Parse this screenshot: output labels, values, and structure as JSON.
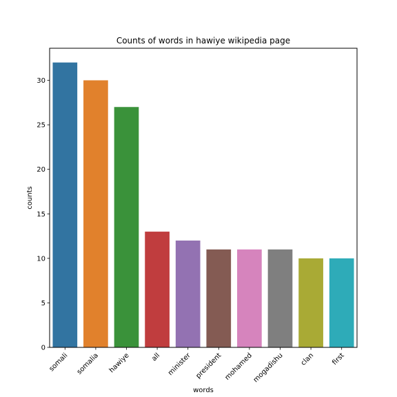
{
  "chart_data": {
    "type": "bar",
    "title": "Counts of words in hawiye wikipedia page",
    "xlabel": "words",
    "ylabel": "counts",
    "categories": [
      "somali",
      "somalia",
      "hawiye",
      "all",
      "minister",
      "president",
      "mohamed",
      "mogadishu",
      "clan",
      "first"
    ],
    "values": [
      32,
      30,
      27,
      13,
      12,
      11,
      11,
      11,
      10,
      10
    ],
    "colors": [
      "#3274a1",
      "#e1812c",
      "#3a923a",
      "#c03d3e",
      "#9372b2",
      "#845b53",
      "#d684bd",
      "#7f7f7f",
      "#a9aa35",
      "#2eabb8"
    ],
    "ylim": [
      0,
      33.6
    ],
    "yticks": [
      0,
      5,
      10,
      15,
      20,
      25,
      30
    ],
    "x_tick_rotation": 45,
    "grid": false,
    "legend": "none"
  }
}
